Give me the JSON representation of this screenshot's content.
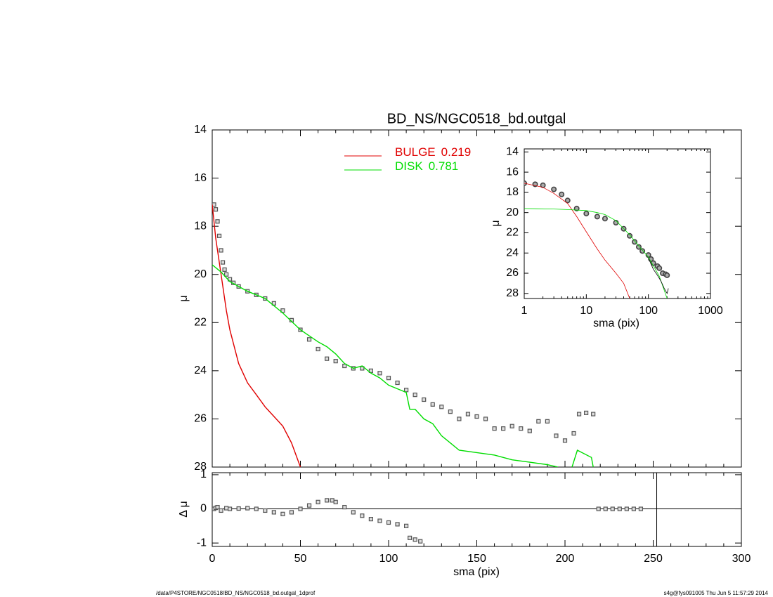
{
  "chart_data": [
    {
      "type": "line",
      "title": "BD_NS/NGC0518_bd.outgal",
      "ylabel": "μ",
      "ylim": [
        28,
        14
      ],
      "yticks": [
        14,
        16,
        18,
        20,
        22,
        24,
        26,
        28
      ],
      "series": [
        {
          "style": "markers",
          "color": "#555555",
          "x": [
            1,
            2,
            3,
            4,
            5,
            6,
            7,
            8,
            10,
            12,
            15,
            20,
            25,
            30,
            35,
            40,
            45,
            50,
            55,
            60,
            65,
            70,
            75,
            80,
            85,
            90,
            95,
            100,
            105,
            110,
            115,
            120,
            125,
            130,
            135,
            140,
            145,
            150,
            155,
            160,
            165,
            170,
            175,
            180,
            185,
            190,
            195,
            200,
            205,
            208,
            212,
            216
          ],
          "values": [
            17.1,
            17.3,
            17.8,
            18.4,
            19.0,
            19.5,
            19.8,
            20.0,
            20.2,
            20.35,
            20.5,
            20.7,
            20.85,
            21.0,
            21.2,
            21.5,
            21.9,
            22.3,
            22.7,
            23.1,
            23.5,
            23.6,
            23.8,
            23.9,
            23.9,
            24.0,
            24.1,
            24.3,
            24.5,
            24.8,
            25.0,
            25.2,
            25.4,
            25.5,
            25.7,
            26.0,
            25.8,
            25.9,
            26.0,
            26.4,
            26.4,
            26.3,
            26.4,
            26.5,
            26.1,
            26.1,
            26.7,
            26.9,
            26.6,
            25.8,
            25.75,
            25.8
          ]
        },
        {
          "name": "BULGE",
          "fraction": 0.219,
          "style": "line",
          "color": "#e00000",
          "x": [
            0,
            2,
            5,
            8,
            10,
            15,
            20,
            25,
            30,
            35,
            40,
            45,
            50
          ],
          "values": [
            17.1,
            18.5,
            20.0,
            21.5,
            22.3,
            23.7,
            24.5,
            25.0,
            25.5,
            25.9,
            26.3,
            27.0,
            28.0
          ]
        },
        {
          "name": "DISK",
          "fraction": 0.781,
          "style": "line",
          "color": "#00dd00",
          "x": [
            0,
            5,
            10,
            20,
            30,
            40,
            50,
            60,
            65,
            70,
            75,
            80,
            85,
            90,
            95,
            100,
            110,
            112,
            115,
            120,
            125,
            130,
            135,
            140,
            150,
            160,
            170,
            180,
            190,
            196,
            200,
            204,
            207,
            215,
            216
          ],
          "values": [
            19.6,
            19.9,
            20.3,
            20.7,
            21.0,
            21.6,
            22.3,
            22.8,
            23.0,
            23.3,
            23.7,
            23.9,
            23.8,
            24.1,
            24.3,
            24.6,
            24.9,
            25.6,
            25.6,
            26.0,
            26.2,
            26.7,
            27.0,
            27.3,
            27.4,
            27.5,
            27.7,
            27.8,
            27.9,
            28.0,
            null,
            28.0,
            27.3,
            27.6,
            28.0
          ]
        }
      ]
    },
    {
      "type": "scatter",
      "xlabel": "sma (pix)",
      "ylabel": "Δ μ",
      "xlim": [
        0,
        300
      ],
      "xticks": [
        0,
        50,
        100,
        150,
        200,
        250,
        300
      ],
      "ylim": [
        -1.1,
        1.06
      ],
      "yticks": [
        -1,
        0,
        1
      ],
      "hline": 0,
      "vline": 252,
      "series": [
        {
          "style": "markers",
          "color": "#555555",
          "x": [
            1,
            2,
            3,
            5,
            8,
            10,
            15,
            20,
            25,
            30,
            35,
            40,
            45,
            50,
            55,
            60,
            65,
            68,
            70,
            75,
            80,
            85,
            90,
            95,
            100,
            105,
            110,
            112,
            115,
            118,
            219,
            223,
            227,
            231,
            235,
            239,
            243
          ],
          "values": [
            0,
            0.03,
            0.05,
            -0.05,
            0.02,
            0,
            0.01,
            0.02,
            0,
            -0.05,
            -0.1,
            -0.15,
            -0.1,
            0,
            0.1,
            0.2,
            0.25,
            0.25,
            0.2,
            0.05,
            -0.1,
            -0.2,
            -0.3,
            -0.35,
            -0.4,
            -0.45,
            -0.5,
            -0.85,
            -0.9,
            -0.95,
            0,
            0,
            0,
            0,
            0,
            0,
            0
          ]
        }
      ]
    },
    {
      "type": "line",
      "xlabel": "sma (pix)",
      "ylabel": "μ",
      "xlog": true,
      "xlim": [
        1,
        1000
      ],
      "xticks": [
        1,
        10,
        100,
        1000
      ],
      "ylim": [
        28.5,
        13.7
      ],
      "yticks": [
        14,
        16,
        18,
        20,
        22,
        24,
        26,
        28
      ],
      "series": [
        {
          "style": "markers",
          "color": "#444444",
          "x": [
            1,
            1.5,
            2,
            3,
            4,
            5,
            7,
            10,
            15,
            20,
            30,
            40,
            50,
            60,
            70,
            80,
            100,
            110,
            120,
            140,
            150,
            170,
            190,
            200
          ],
          "values": [
            17.1,
            17.2,
            17.3,
            17.7,
            18.2,
            18.8,
            19.6,
            20.1,
            20.4,
            20.6,
            21.0,
            21.6,
            22.3,
            22.9,
            23.4,
            23.8,
            24.2,
            24.6,
            25.0,
            25.3,
            25.5,
            26.0,
            26.1,
            26.2
          ]
        },
        {
          "style": "line",
          "color": "#e00000",
          "x": [
            1,
            2,
            3,
            5,
            7,
            10,
            15,
            20,
            30,
            40,
            50
          ],
          "values": [
            17.1,
            17.5,
            18.1,
            19.1,
            20.4,
            21.9,
            23.6,
            24.7,
            26.0,
            27.0,
            28.5
          ]
        },
        {
          "style": "line",
          "color": "#00dd00",
          "x": [
            1,
            3,
            5,
            10,
            15,
            20,
            30,
            50,
            70,
            100,
            150,
            200
          ],
          "values": [
            19.6,
            19.65,
            19.7,
            19.8,
            20.0,
            20.2,
            20.8,
            22.2,
            23.3,
            24.4,
            26.3,
            28.5
          ]
        },
        {
          "style": "line",
          "color": "#000000",
          "x": [
            100,
            120,
            140,
            160,
            180,
            200,
            210
          ],
          "values": [
            24.5,
            25.6,
            26.2,
            26.8,
            27.5,
            28.0,
            27.5
          ]
        }
      ]
    }
  ],
  "footer": {
    "left": "/data/P4STORE/NGC0518/BD_NS/NGC0518_bd.outgal_1dprof",
    "right": "s4g@fys091005  Thu Jun  5 11:57:29 2014"
  }
}
